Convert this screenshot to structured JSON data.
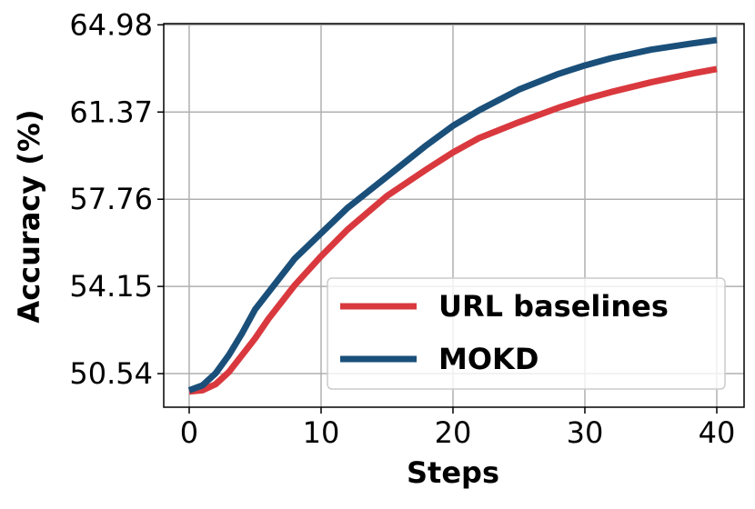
{
  "chart_data": {
    "type": "line",
    "x_label": "Steps",
    "y_label": "Accuracy (%)",
    "x": [
      0,
      1,
      2,
      3,
      4,
      5,
      6,
      8,
      10,
      12,
      15,
      18,
      20,
      22,
      25,
      28,
      30,
      32,
      35,
      38,
      40
    ],
    "series": [
      {
        "name": "URL baselines",
        "color": "#d9393e",
        "values": [
          49.8,
          49.85,
          50.1,
          50.6,
          51.3,
          52.0,
          52.8,
          54.2,
          55.4,
          56.5,
          57.9,
          59.0,
          59.7,
          60.3,
          60.95,
          61.55,
          61.9,
          62.2,
          62.6,
          62.95,
          63.15
        ]
      },
      {
        "name": "MOKD",
        "color": "#1a4f7a",
        "values": [
          49.85,
          50.05,
          50.55,
          51.3,
          52.2,
          53.2,
          53.9,
          55.3,
          56.35,
          57.4,
          58.7,
          60.0,
          60.8,
          61.45,
          62.3,
          62.95,
          63.3,
          63.6,
          63.95,
          64.2,
          64.35
        ]
      }
    ],
    "xlim": [
      -1.93,
      42.07
    ],
    "ylim": [
      49.15,
      65.03
    ],
    "xticks": [
      0,
      10,
      20,
      30,
      40
    ],
    "yticks": [
      50.54,
      54.15,
      57.76,
      61.37,
      64.98
    ],
    "grid": true,
    "legend": "lower right"
  }
}
